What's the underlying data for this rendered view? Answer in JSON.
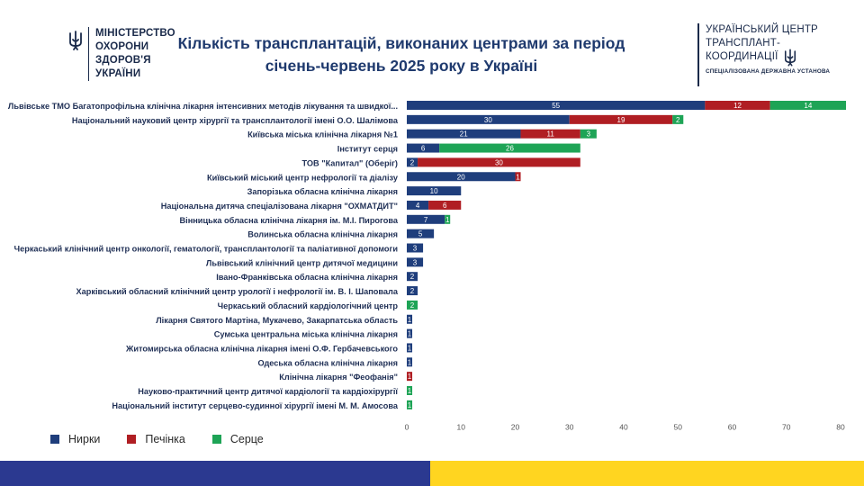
{
  "ministry": {
    "line1": "МІНІСТЕРСТВО",
    "line2": "ОХОРОНИ",
    "line3": "ЗДОРОВ'Я",
    "line4": "УКРАЇНИ",
    "icon": "trident-icon"
  },
  "title": {
    "line1": "Кількість трансплантацій, виконаних центрами за період",
    "line2": "січень-червень 2025 року в Україні"
  },
  "utc": {
    "line1": "УКРАЇНСЬКИЙ ЦЕНТР",
    "line2": "ТРАНСПЛАНТ-",
    "line3": "КООРДИНАЦІЇ",
    "subtitle": "СПЕЦІАЛІЗОВАНА ДЕРЖАВНА УСТАНОВА",
    "icon": "trident-icon"
  },
  "colors": {
    "kidney": "#1f3e7c",
    "liver": "#b01e23",
    "heart": "#1ea456",
    "stripe_blue": "#2b3990",
    "stripe_yellow": "#ffd520"
  },
  "chart_data": {
    "type": "bar",
    "orientation": "horizontal",
    "stacked": true,
    "categories": [
      "Львівське ТМО Багатопрофільна клінічна лікарня інтенсивних методів лікування та швидкої...",
      "Національний науковий центр хірургії та трансплантології імені О.О. Шалімова",
      "Київська міська клінічна лікарня №1",
      "Інститут серця",
      "ТОВ \"Капитал\" (Оберіг)",
      "Київський міський центр нефрології та діалізу",
      "Запорізька обласна клінічна лікарня",
      "Національна дитяча спеціалізована лікарня \"ОХМАТДИТ\"",
      "Вінницька обласна клінічна лікарня ім. М.І. Пирогова",
      "Волинська обласна клінічна лікарня",
      "Черкаський клінічний центр онкології, гематології, трансплантології та паліативної допомоги",
      "Львівський клінічний центр дитячої медицини",
      "Івано-Франківська обласна клінічна лікарня",
      "Харківський обласний клінічний центр урології і нефрології ім. В. І. Шаповала",
      "Черкаський обласний кардіологічний центр",
      "Лікарня Святого Мартіна, Мукачево, Закарпатська область",
      "Сумська центральна міська клінічна лікарня",
      "Житомирська обласна клінічна лікарня імені О.Ф. Гербачевського",
      "Одеська обласна клінічна лікарня",
      "Клінічна лікарня \"Феофанія\"",
      "Науково-практичний центр дитячої кардіології та кардіохірургії",
      "Національний інститут серцево-судинної хірургії імені М. М. Амосова"
    ],
    "series": [
      {
        "name": "Нирки",
        "values": [
          55,
          30,
          21,
          6,
          2,
          20,
          10,
          4,
          7,
          5,
          3,
          3,
          2,
          2,
          0,
          1,
          1,
          1,
          1,
          0,
          0,
          0
        ]
      },
      {
        "name": "Печінка",
        "values": [
          12,
          19,
          11,
          0,
          30,
          1,
          0,
          6,
          0,
          0,
          0,
          0,
          0,
          0,
          0,
          0,
          0,
          0,
          0,
          1,
          0,
          0
        ]
      },
      {
        "name": "Серце",
        "values": [
          14,
          2,
          3,
          26,
          0,
          0,
          0,
          0,
          1,
          0,
          0,
          0,
          0,
          0,
          2,
          0,
          0,
          0,
          0,
          0,
          1,
          1
        ]
      }
    ],
    "xlim": [
      0,
      80
    ],
    "xticks": [
      "0",
      "10",
      "20",
      "30",
      "40",
      "50",
      "60",
      "70",
      "80"
    ],
    "grid": false,
    "legend": "bottom-left"
  }
}
